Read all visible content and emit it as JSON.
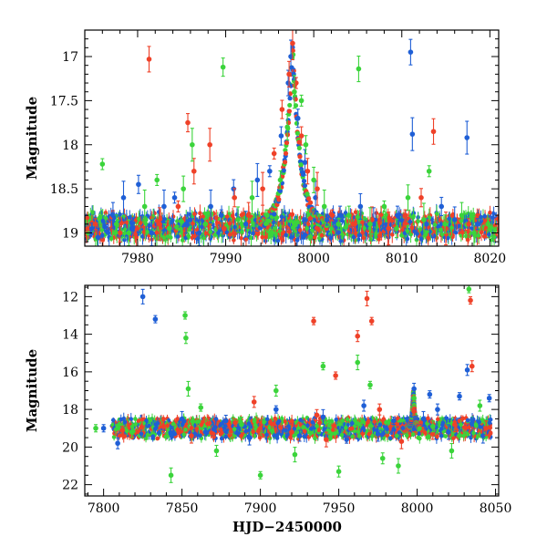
{
  "figure": {
    "xlabel": "HJD−2450000"
  },
  "chart_data": [
    {
      "type": "scatter",
      "panel": "top",
      "xlim": [
        7974,
        8021
      ],
      "ylim": [
        19.15,
        16.7
      ],
      "invert_y": true,
      "ylabel": "Magnitude",
      "xlabel": "",
      "xticks": [
        7980,
        7990,
        8000,
        8010,
        8020
      ],
      "yticks": [
        17,
        17.5,
        18,
        18.5,
        19
      ],
      "ytick_labels": [
        "17",
        "17.5",
        "18",
        "18.5",
        "19"
      ],
      "grid": false,
      "legend": "none",
      "baseline": 18.93,
      "series": [
        {
          "color": "#1f5fd6",
          "points": [
            [
              7974.8,
              18.95
            ],
            [
              7975.5,
              19.05
            ],
            [
              7977.2,
              18.8
            ],
            [
              7978.4,
              18.6
            ],
            [
              7979.3,
              18.95
            ],
            [
              7980.1,
              18.45
            ],
            [
              7981.6,
              19.0
            ],
            [
              7983.0,
              18.7
            ],
            [
              7984.2,
              18.6
            ],
            [
              7985.5,
              18.9
            ],
            [
              7987.0,
              19.0
            ],
            [
              7988.3,
              18.7
            ],
            [
              7989.5,
              18.8
            ],
            [
              7990.9,
              18.5
            ],
            [
              7992.3,
              18.9
            ],
            [
              7993.6,
              18.4
            ],
            [
              7995.0,
              18.3
            ],
            [
              7996.3,
              17.9
            ],
            [
              7997.1,
              17.3
            ],
            [
              7997.4,
              17.0
            ],
            [
              7997.7,
              17.2
            ],
            [
              7998.2,
              17.7
            ],
            [
              7999.0,
              18.2
            ],
            [
              8000.2,
              18.6
            ],
            [
              8001.5,
              18.85
            ],
            [
              8003.0,
              18.8
            ],
            [
              8005.3,
              18.7
            ],
            [
              8006.8,
              18.9
            ],
            [
              8008.2,
              18.95
            ],
            [
              8009.5,
              18.8
            ],
            [
              8011.0,
              16.95
            ],
            [
              8011.2,
              17.88
            ],
            [
              8012.8,
              18.9
            ],
            [
              8014.5,
              18.7
            ],
            [
              8016.0,
              18.85
            ],
            [
              8017.4,
              17.92
            ],
            [
              8018.6,
              18.9
            ]
          ]
        },
        {
          "color": "#ef4128",
          "points": [
            [
              7975.2,
              18.9
            ],
            [
              7978.0,
              19.0
            ],
            [
              7981.3,
              17.03
            ],
            [
              7982.5,
              18.9
            ],
            [
              7984.6,
              18.7
            ],
            [
              7985.7,
              17.75
            ],
            [
              7986.4,
              18.3
            ],
            [
              7988.2,
              18.0
            ],
            [
              7989.8,
              18.95
            ],
            [
              7991.0,
              18.6
            ],
            [
              7992.6,
              18.8
            ],
            [
              7994.2,
              18.5
            ],
            [
              7995.5,
              18.1
            ],
            [
              7996.4,
              17.6
            ],
            [
              7997.2,
              17.2
            ],
            [
              7997.6,
              16.85
            ],
            [
              7998.0,
              17.3
            ],
            [
              7998.6,
              17.9
            ],
            [
              7999.3,
              18.3
            ],
            [
              8000.4,
              18.5
            ],
            [
              8002.1,
              18.8
            ],
            [
              8004.4,
              18.9
            ],
            [
              8006.6,
              18.85
            ],
            [
              8008.5,
              18.95
            ],
            [
              8010.4,
              18.8
            ],
            [
              8012.2,
              18.6
            ],
            [
              8013.6,
              17.85
            ],
            [
              8015.0,
              18.95
            ],
            [
              8017.6,
              18.9
            ],
            [
              8019.6,
              18.95
            ]
          ]
        },
        {
          "color": "#3bd43b",
          "points": [
            [
              7976.0,
              18.22
            ],
            [
              7977.6,
              18.9
            ],
            [
              7979.0,
              19.0
            ],
            [
              7980.8,
              18.7
            ],
            [
              7982.2,
              18.4
            ],
            [
              7983.6,
              18.95
            ],
            [
              7985.2,
              18.5
            ],
            [
              7986.2,
              18.0
            ],
            [
              7987.7,
              18.9
            ],
            [
              7989.7,
              17.12
            ],
            [
              7991.4,
              18.85
            ],
            [
              7993.0,
              18.6
            ],
            [
              7994.7,
              18.8
            ],
            [
              7996.2,
              18.4
            ],
            [
              7997.0,
              17.8
            ],
            [
              7997.8,
              17.4
            ],
            [
              7998.6,
              17.5
            ],
            [
              7999.1,
              18.0
            ],
            [
              8000.0,
              18.4
            ],
            [
              8001.2,
              18.7
            ],
            [
              8002.8,
              18.9
            ],
            [
              8004.0,
              18.8
            ],
            [
              8005.1,
              17.14
            ],
            [
              8006.4,
              18.9
            ],
            [
              8008.0,
              18.7
            ],
            [
              8009.4,
              18.95
            ],
            [
              8010.7,
              18.6
            ],
            [
              8012.5,
              18.85
            ],
            [
              8013.1,
              18.3
            ],
            [
              8014.9,
              18.9
            ],
            [
              8016.8,
              18.8
            ],
            [
              8018.2,
              19.0
            ],
            [
              8019.8,
              18.9
            ]
          ]
        }
      ]
    },
    {
      "type": "scatter",
      "panel": "bottom",
      "xlim": [
        7788,
        8052
      ],
      "ylim": [
        22.6,
        11.4
      ],
      "invert_y": true,
      "ylabel": "Magnitude",
      "xlabel": "HJD−2450000",
      "xticks": [
        7800,
        7850,
        7900,
        7950,
        8000,
        8050
      ],
      "yticks": [
        12,
        14,
        16,
        18,
        20,
        22
      ],
      "ytick_labels": [
        "12",
        "14",
        "16",
        "18",
        "20",
        "22"
      ],
      "grid": false,
      "legend": "none",
      "baseline": 19.0,
      "series": [
        {
          "color": "#1f5fd6",
          "points": [
            [
              7800.0,
              19.0
            ],
            [
              7809.0,
              19.8
            ],
            [
              7825.0,
              12.0
            ],
            [
              7833.0,
              13.2
            ],
            [
              7843.0,
              19.3
            ],
            [
              7850.0,
              18.5
            ],
            [
              7865.0,
              19.2
            ],
            [
              7878.0,
              18.6
            ],
            [
              7893.0,
              19.5
            ],
            [
              7910.0,
              18.0
            ],
            [
              7925.0,
              19.4
            ],
            [
              7940.0,
              18.4
            ],
            [
              7955.0,
              19.6
            ],
            [
              7966.0,
              17.8
            ],
            [
              7975.0,
              19.3
            ],
            [
              7985.0,
              18.6
            ],
            [
              7998.0,
              16.9
            ],
            [
              8004.0,
              18.5
            ],
            [
              8008.0,
              17.2
            ],
            [
              8013.0,
              18.0
            ],
            [
              8020.0,
              19.2
            ],
            [
              8027.0,
              17.3
            ],
            [
              8032.0,
              15.9
            ],
            [
              8042.0,
              19.4
            ],
            [
              8046.0,
              17.4
            ]
          ]
        },
        {
          "color": "#ef4128",
          "points": [
            [
              7812.0,
              19.1
            ],
            [
              7838.0,
              18.9
            ],
            [
              7856.0,
              19.4
            ],
            [
              7884.0,
              18.7
            ],
            [
              7896.0,
              17.6
            ],
            [
              7920.0,
              19.2
            ],
            [
              7934.0,
              13.3
            ],
            [
              7936.0,
              18.3
            ],
            [
              7942.0,
              19.6
            ],
            [
              7948.0,
              16.2
            ],
            [
              7962.0,
              14.1
            ],
            [
              7968.0,
              12.1
            ],
            [
              7971.0,
              13.3
            ],
            [
              7976.0,
              18.0
            ],
            [
              7990.0,
              19.7
            ],
            [
              7998.0,
              18.1
            ],
            [
              8010.0,
              19.3
            ],
            [
              8024.0,
              18.8
            ],
            [
              8034.0,
              12.2
            ],
            [
              8035.0,
              15.7
            ],
            [
              8044.0,
              19.0
            ]
          ]
        },
        {
          "color": "#3bd43b",
          "points": [
            [
              7795.0,
              19.0
            ],
            [
              7818.0,
              19.2
            ],
            [
              7843.0,
              21.5
            ],
            [
              7852.0,
              13.0
            ],
            [
              7852.5,
              14.2
            ],
            [
              7854.0,
              16.9
            ],
            [
              7862.0,
              17.9
            ],
            [
              7872.0,
              20.2
            ],
            [
              7888.0,
              18.8
            ],
            [
              7900.0,
              21.5
            ],
            [
              7910.0,
              17.0
            ],
            [
              7922.0,
              20.4
            ],
            [
              7940.0,
              15.7
            ],
            [
              7950.0,
              21.3
            ],
            [
              7962.0,
              15.5
            ],
            [
              7970.0,
              16.7
            ],
            [
              7978.0,
              20.6
            ],
            [
              7988.0,
              21.0
            ],
            [
              7998.0,
              17.4
            ],
            [
              8010.0,
              18.9
            ],
            [
              8022.0,
              20.2
            ],
            [
              8033.0,
              11.6
            ],
            [
              8040.0,
              17.8
            ]
          ]
        }
      ]
    }
  ]
}
